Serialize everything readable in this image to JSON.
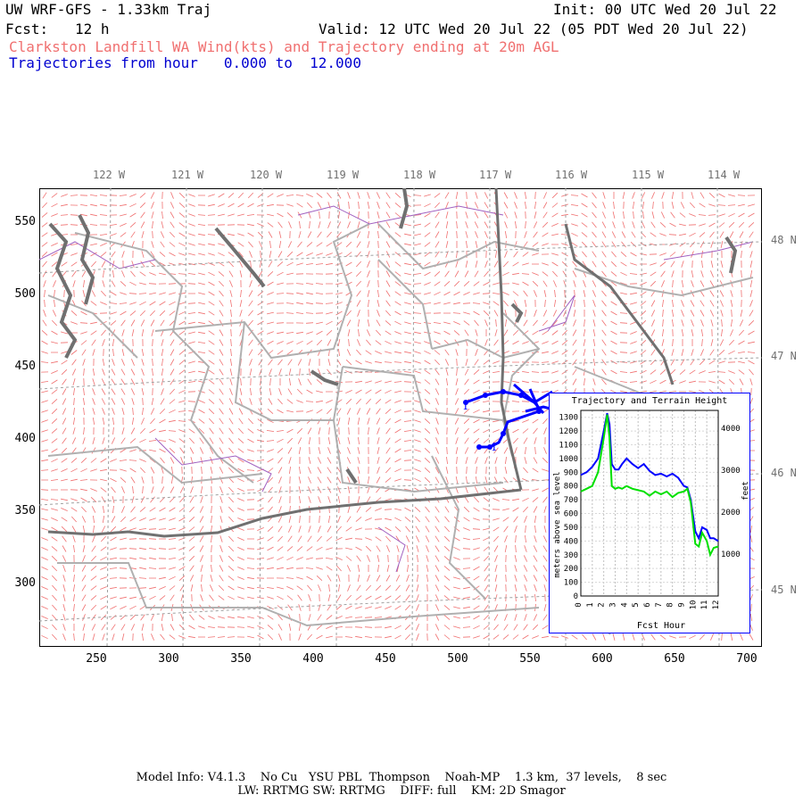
{
  "header": {
    "model": "UW WRF-GFS - 1.33km Traj",
    "init": "Init: 00 UTC Wed 20 Jul 22",
    "fcst_label": "Fcst:",
    "fcst_value": "12 h",
    "valid": "Valid: 12 UTC Wed 20 Jul 22 (05 PDT Wed 20 Jul 22)",
    "subtitle": "Clarkston Landfill WA Wind(kts) and Trajectory ending at 20m AGL",
    "traj_line": "Trajectories from hour   0.000 to  12.000"
  },
  "map": {
    "lon_labels": [
      "122 W",
      "121 W",
      "120 W",
      "119 W",
      "118 W",
      "117 W",
      "116 W",
      "115 W",
      "114 W"
    ],
    "lat_labels": [
      "48 N",
      "47 N",
      "46 N",
      "45 N"
    ],
    "y_ticks": [
      "550",
      "500",
      "450",
      "400",
      "350",
      "300"
    ],
    "x_ticks": [
      "250",
      "300",
      "350",
      "400",
      "450",
      "500",
      "550",
      "600",
      "650",
      "700"
    ],
    "traj_label_a": "1",
    "traj_label_b": "1",
    "colors": {
      "wind_barbs": "#f07070",
      "trajectory": "#0000ff",
      "grid": "#a0a0a0",
      "counties": "#b0b0b0",
      "water": "#707070",
      "political": "#a060c0"
    }
  },
  "inset": {
    "title": "Trajectory and Terrain Height",
    "ylabel_left": "meters above sea level",
    "ylabel_right": "feet",
    "xlabel": "Fcst Hour",
    "left_ticks": [
      "0",
      "100",
      "200",
      "300",
      "400",
      "500",
      "600",
      "700",
      "800",
      "900",
      "1000",
      "1100",
      "1200",
      "1300"
    ],
    "right_ticks": [
      "1000",
      "2000",
      "3000",
      "4000"
    ],
    "x_ticks": [
      "0",
      "1",
      "2",
      "3",
      "4",
      "5",
      "6",
      "7",
      "8",
      "9",
      "10",
      "11",
      "12"
    ],
    "chart_data": {
      "type": "line",
      "x_range": [
        0,
        12
      ],
      "y_range_m": [
        0,
        1350
      ],
      "series": [
        {
          "color": "#0000ff",
          "x": [
            0,
            0.5,
            1,
            1.5,
            2,
            2.3,
            2.5,
            2.7,
            3,
            3.3,
            3.6,
            4,
            4.5,
            5,
            5.5,
            6,
            6.5,
            7,
            7.5,
            8,
            8.5,
            9,
            9.3,
            9.6,
            10,
            10.3,
            10.6,
            11,
            11.3,
            11.6,
            12
          ],
          "y": [
            880,
            900,
            940,
            1000,
            1200,
            1330,
            1250,
            960,
            920,
            920,
            960,
            1000,
            960,
            930,
            960,
            910,
            880,
            890,
            870,
            890,
            860,
            800,
            790,
            700,
            470,
            420,
            500,
            480,
            420,
            420,
            400
          ]
        },
        {
          "color": "#00e000",
          "x": [
            0,
            0.5,
            1,
            1.5,
            2,
            2.3,
            2.5,
            2.7,
            3,
            3.3,
            3.6,
            4,
            4.5,
            5,
            5.5,
            6,
            6.5,
            7,
            7.5,
            8,
            8.5,
            9,
            9.3,
            9.6,
            10,
            10.3,
            10.6,
            11,
            11.3,
            11.6,
            12
          ],
          "y": [
            760,
            780,
            800,
            900,
            1150,
            1320,
            1150,
            800,
            780,
            790,
            780,
            800,
            780,
            770,
            760,
            730,
            760,
            740,
            760,
            720,
            750,
            760,
            780,
            680,
            380,
            360,
            460,
            400,
            300,
            350,
            360
          ]
        }
      ]
    }
  },
  "footer": {
    "line1": "Model Info: V4.1.3    No Cu   YSU PBL  Thompson    Noah-MP    1.3 km,  37 levels,    8 sec",
    "line2": "LW: RRTMG SW: RRTMG    DIFF: full    KM: 2D Smagor"
  }
}
